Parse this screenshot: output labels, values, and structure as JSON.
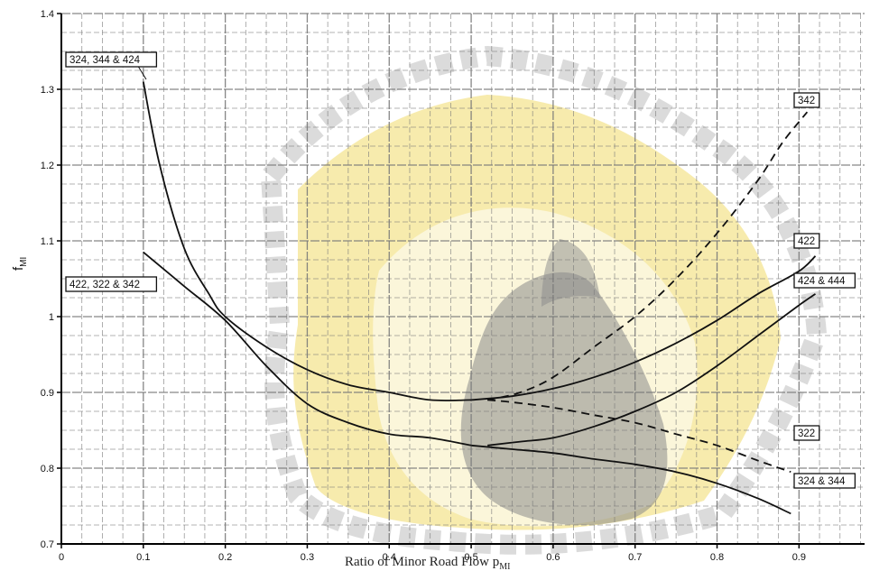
{
  "chart_data": {
    "type": "line",
    "xlabel": "Ratio of Minor Road Flow p",
    "xlabel_subscript": "MI",
    "ylabel": "f",
    "ylabel_subscript": "MI",
    "xlim": [
      0,
      0.98
    ],
    "ylim": [
      0.7,
      1.4
    ],
    "x_ticks": [
      0,
      0.1,
      0.2,
      0.3,
      0.4,
      0.5,
      0.6,
      0.7,
      0.8,
      0.9
    ],
    "x_tick_labels": [
      "0",
      "0.1",
      "0.2",
      "0.3",
      "0.4",
      "0.5",
      "0.6",
      "0.7",
      "0.8",
      "0.9"
    ],
    "y_ticks": [
      0.7,
      0.8,
      0.9,
      1.0,
      1.1,
      1.2,
      1.3,
      1.4
    ],
    "y_tick_labels": [
      "0.7",
      "0.8",
      "0.9",
      "1",
      "1.1",
      "1.2",
      "1.3",
      "1.4"
    ],
    "grid": true,
    "series": [
      {
        "name": "324, 344 & 424",
        "style": "solid",
        "x": [
          0.1,
          0.12,
          0.15,
          0.18,
          0.2,
          0.25,
          0.3,
          0.35,
          0.4,
          0.45,
          0.5
        ],
        "y": [
          1.31,
          1.2,
          1.09,
          1.03,
          1.0,
          0.96,
          0.93,
          0.91,
          0.9,
          0.89,
          0.89
        ]
      },
      {
        "name": "422",
        "style": "solid",
        "x": [
          0.5,
          0.55,
          0.6,
          0.65,
          0.7,
          0.75,
          0.8,
          0.85,
          0.9,
          0.92
        ],
        "y": [
          0.89,
          0.895,
          0.905,
          0.92,
          0.94,
          0.965,
          0.995,
          1.03,
          1.06,
          1.08
        ]
      },
      {
        "name": "342",
        "style": "dashed",
        "x": [
          0.52,
          0.56,
          0.6,
          0.65,
          0.7,
          0.75,
          0.8,
          0.85,
          0.88,
          0.91
        ],
        "y": [
          0.89,
          0.9,
          0.92,
          0.96,
          1.0,
          1.05,
          1.11,
          1.18,
          1.23,
          1.27
        ]
      },
      {
        "name": "422, 322 & 342",
        "style": "solid",
        "x": [
          0.1,
          0.15,
          0.2,
          0.25,
          0.3,
          0.35,
          0.4,
          0.45,
          0.5
        ],
        "y": [
          1.085,
          1.04,
          0.995,
          0.935,
          0.885,
          0.86,
          0.845,
          0.84,
          0.83
        ]
      },
      {
        "name": "424 & 444",
        "style": "solid",
        "x": [
          0.52,
          0.56,
          0.6,
          0.65,
          0.7,
          0.75,
          0.8,
          0.85,
          0.9,
          0.92
        ],
        "y": [
          0.83,
          0.835,
          0.84,
          0.855,
          0.875,
          0.9,
          0.935,
          0.975,
          1.015,
          1.03
        ]
      },
      {
        "name": "322",
        "style": "dashed",
        "x": [
          0.52,
          0.55,
          0.6,
          0.65,
          0.7,
          0.75,
          0.8,
          0.85,
          0.89
        ],
        "y": [
          0.89,
          0.887,
          0.88,
          0.87,
          0.86,
          0.845,
          0.83,
          0.81,
          0.795
        ]
      },
      {
        "name": "324 & 344",
        "style": "solid",
        "x": [
          0.5,
          0.55,
          0.6,
          0.65,
          0.7,
          0.75,
          0.8,
          0.85,
          0.89
        ],
        "y": [
          0.83,
          0.825,
          0.82,
          0.812,
          0.805,
          0.795,
          0.78,
          0.76,
          0.74
        ]
      }
    ]
  },
  "colors": {
    "grid": "#7a7a7a",
    "curve": "#111111",
    "watermark_fill": "#f4e38a",
    "watermark_stroke": "#bdbdbd",
    "watermark_dark": "#8a8a8a"
  }
}
